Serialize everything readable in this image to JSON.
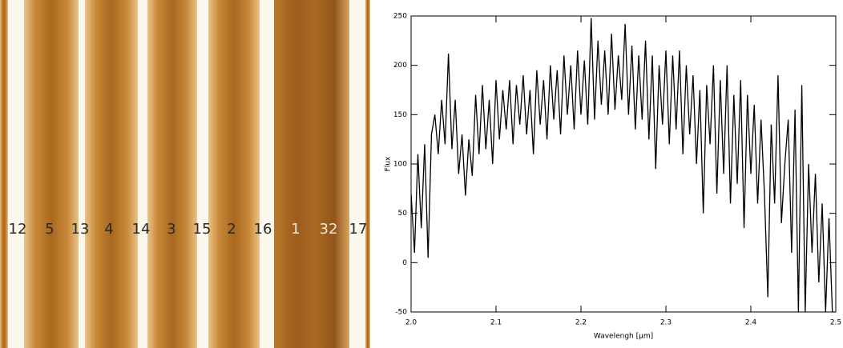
{
  "image": {
    "fiber_labels": [
      "12",
      "5",
      "13",
      "4",
      "14",
      "3",
      "15",
      "2",
      "16",
      "1",
      "32",
      "17"
    ]
  },
  "chart_data": {
    "type": "line",
    "xlabel": "Wavelengh [μm]",
    "ylabel": "Flux",
    "color": "#000000",
    "xlim": [
      2.0,
      2.5
    ],
    "ylim": [
      -50,
      250
    ],
    "xticks": [
      {
        "value": 2.0,
        "label": "2.0"
      },
      {
        "value": 2.1,
        "label": "2.1"
      },
      {
        "value": 2.2,
        "label": "2.2"
      },
      {
        "value": 2.3,
        "label": "2.3"
      },
      {
        "value": 2.4,
        "label": "2.4"
      },
      {
        "value": 2.5,
        "label": "2.5"
      }
    ],
    "yticks": [
      -50,
      0,
      50,
      100,
      150,
      200,
      250
    ],
    "x": [
      2.0,
      2.004,
      2.008,
      2.012,
      2.016,
      2.02,
      2.024,
      2.028,
      2.032,
      2.036,
      2.04,
      2.044,
      2.048,
      2.052,
      2.056,
      2.06,
      2.064,
      2.068,
      2.072,
      2.076,
      2.08,
      2.084,
      2.088,
      2.092,
      2.096,
      2.1,
      2.104,
      2.108,
      2.112,
      2.116,
      2.12,
      2.124,
      2.128,
      2.132,
      2.136,
      2.14,
      2.144,
      2.148,
      2.152,
      2.156,
      2.16,
      2.164,
      2.168,
      2.172,
      2.176,
      2.18,
      2.184,
      2.188,
      2.192,
      2.196,
      2.2,
      2.204,
      2.208,
      2.212,
      2.216,
      2.22,
      2.224,
      2.228,
      2.232,
      2.236,
      2.24,
      2.244,
      2.248,
      2.252,
      2.256,
      2.26,
      2.264,
      2.268,
      2.272,
      2.276,
      2.28,
      2.284,
      2.288,
      2.292,
      2.296,
      2.3,
      2.304,
      2.308,
      2.312,
      2.316,
      2.32,
      2.324,
      2.328,
      2.332,
      2.336,
      2.34,
      2.344,
      2.348,
      2.352,
      2.356,
      2.36,
      2.364,
      2.368,
      2.372,
      2.376,
      2.38,
      2.384,
      2.388,
      2.392,
      2.396,
      2.4,
      2.404,
      2.408,
      2.412,
      2.416,
      2.42,
      2.424,
      2.428,
      2.432,
      2.436,
      2.44,
      2.444,
      2.448,
      2.452,
      2.456,
      2.46,
      2.464,
      2.468,
      2.472,
      2.476,
      2.48,
      2.484,
      2.488,
      2.492,
      2.496,
      2.5
    ],
    "values": [
      70,
      10,
      110,
      35,
      120,
      5,
      130,
      150,
      110,
      165,
      120,
      212,
      115,
      165,
      90,
      130,
      68,
      125,
      88,
      170,
      110,
      180,
      115,
      165,
      100,
      185,
      125,
      175,
      135,
      185,
      120,
      180,
      140,
      190,
      130,
      175,
      110,
      195,
      140,
      185,
      125,
      200,
      145,
      195,
      130,
      210,
      150,
      200,
      135,
      215,
      150,
      205,
      140,
      248,
      145,
      225,
      160,
      215,
      150,
      232,
      155,
      210,
      165,
      242,
      150,
      220,
      135,
      210,
      145,
      225,
      125,
      210,
      95,
      200,
      140,
      215,
      120,
      210,
      135,
      215,
      110,
      200,
      130,
      190,
      100,
      175,
      50,
      180,
      120,
      200,
      70,
      185,
      90,
      200,
      60,
      170,
      80,
      185,
      35,
      170,
      90,
      160,
      60,
      145,
      70,
      -35,
      140,
      60,
      190,
      40,
      100,
      145,
      10,
      155,
      -50,
      180,
      -50,
      100,
      10,
      90,
      -20,
      60,
      -50,
      45,
      -50,
      -50
    ]
  }
}
